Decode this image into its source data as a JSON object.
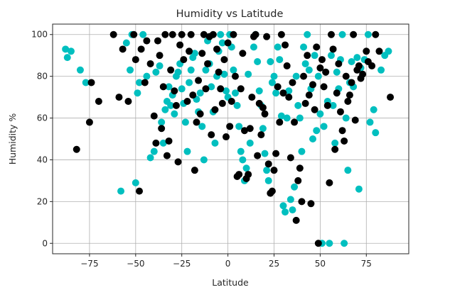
{
  "chart_data": {
    "type": "scatter",
    "title": "Humidity vs Latitude",
    "xlabel": "Latitude",
    "ylabel": "Humidity %",
    "xlim": [
      -95,
      98
    ],
    "ylim": [
      -5,
      105
    ],
    "xticks": [
      -75,
      -50,
      -25,
      0,
      25,
      50,
      75
    ],
    "xtick_labels": [
      "−75",
      "−50",
      "−25",
      "0",
      "25",
      "50",
      "75"
    ],
    "yticks": [
      0,
      20,
      40,
      60,
      80,
      100
    ],
    "ytick_labels": [
      "0",
      "20",
      "40",
      "60",
      "80",
      "100"
    ],
    "grid": true,
    "legend": "none",
    "colors": {
      "cyan": "#00bfbf",
      "black": "#000000"
    },
    "series": [
      {
        "color": "#00bfbf",
        "points": [
          [
            -88,
            93
          ],
          [
            -87,
            89
          ],
          [
            -85,
            92
          ],
          [
            -80,
            83
          ],
          [
            -77,
            77
          ],
          [
            -58,
            25
          ],
          [
            -55,
            96
          ],
          [
            -53,
            83
          ],
          [
            -52,
            100
          ],
          [
            -50,
            29
          ],
          [
            -49,
            72
          ],
          [
            -48,
            77
          ],
          [
            -46,
            100
          ],
          [
            -44,
            80
          ],
          [
            -42,
            41
          ],
          [
            -40,
            44
          ],
          [
            -39,
            82
          ],
          [
            -37,
            85
          ],
          [
            -36,
            58
          ],
          [
            -35,
            48
          ],
          [
            -34,
            64
          ],
          [
            -33,
            68
          ],
          [
            -32,
            75
          ],
          [
            -31,
            66
          ],
          [
            -30,
            71
          ],
          [
            -29,
            62
          ],
          [
            -28,
            80
          ],
          [
            -27,
            82
          ],
          [
            -26,
            86
          ],
          [
            -25,
            74
          ],
          [
            -24,
            67
          ],
          [
            -23,
            58
          ],
          [
            -22,
            44
          ],
          [
            -21,
            77
          ],
          [
            -20,
            83
          ],
          [
            -19,
            89
          ],
          [
            -18,
            91
          ],
          [
            -17,
            69
          ],
          [
            -16,
            63
          ],
          [
            -15,
            72
          ],
          [
            -14,
            56
          ],
          [
            -13,
            40
          ],
          [
            -12,
            83
          ],
          [
            -11,
            97
          ],
          [
            -10,
            86
          ],
          [
            -9,
            75
          ],
          [
            -8,
            63
          ],
          [
            -7,
            48
          ],
          [
            -6,
            80
          ],
          [
            -5,
            92
          ],
          [
            -4,
            100
          ],
          [
            -3,
            96
          ],
          [
            -2,
            81
          ],
          [
            -1,
            73
          ],
          [
            0,
            70
          ],
          [
            1,
            100
          ],
          [
            2,
            94
          ],
          [
            3,
            83
          ],
          [
            4,
            72
          ],
          [
            5,
            66
          ],
          [
            6,
            56
          ],
          [
            7,
            44
          ],
          [
            8,
            40
          ],
          [
            9,
            30
          ],
          [
            10,
            36
          ],
          [
            11,
            81
          ],
          [
            12,
            48
          ],
          [
            14,
            94
          ],
          [
            15,
            100
          ],
          [
            16,
            87
          ],
          [
            17,
            73
          ],
          [
            18,
            66
          ],
          [
            19,
            55
          ],
          [
            20,
            43
          ],
          [
            21,
            35
          ],
          [
            22,
            30
          ],
          [
            23,
            87
          ],
          [
            24,
            77
          ],
          [
            25,
            80
          ],
          [
            26,
            72
          ],
          [
            27,
            94
          ],
          [
            28,
            88
          ],
          [
            29,
            61
          ],
          [
            30,
            18
          ],
          [
            31,
            15
          ],
          [
            32,
            60
          ],
          [
            33,
            73
          ],
          [
            34,
            21
          ],
          [
            35,
            16
          ],
          [
            36,
            27
          ],
          [
            37,
            80
          ],
          [
            38,
            66
          ],
          [
            39,
            60
          ],
          [
            40,
            44
          ],
          [
            41,
            94
          ],
          [
            42,
            86
          ],
          [
            43,
            100
          ],
          [
            44,
            83
          ],
          [
            45,
            74
          ],
          [
            46,
            50
          ],
          [
            47,
            90
          ],
          [
            48,
            54
          ],
          [
            49,
            80
          ],
          [
            50,
            62
          ],
          [
            51,
            0
          ],
          [
            52,
            56
          ],
          [
            53,
            82
          ],
          [
            54,
            68
          ],
          [
            55,
            0
          ],
          [
            56,
            90
          ],
          [
            57,
            66
          ],
          [
            58,
            48
          ],
          [
            59,
            82
          ],
          [
            60,
            74
          ],
          [
            61,
            88
          ],
          [
            62,
            100
          ],
          [
            63,
            0
          ],
          [
            64,
            60
          ],
          [
            65,
            35
          ],
          [
            66,
            77
          ],
          [
            67,
            87
          ],
          [
            68,
            75
          ],
          [
            70,
            89
          ],
          [
            71,
            26
          ],
          [
            72,
            84
          ],
          [
            74,
            88
          ],
          [
            76,
            100
          ],
          [
            77,
            58
          ],
          [
            79,
            64
          ],
          [
            80,
            53
          ],
          [
            83,
            83
          ],
          [
            85,
            90
          ],
          [
            87,
            92
          ]
        ]
      },
      {
        "color": "#000000",
        "points": [
          [
            -82,
            45
          ],
          [
            -75,
            58
          ],
          [
            -74,
            77
          ],
          [
            -70,
            68
          ],
          [
            -62,
            100
          ],
          [
            -59,
            70
          ],
          [
            -57,
            93
          ],
          [
            -54,
            68
          ],
          [
            -51,
            100
          ],
          [
            -50,
            88
          ],
          [
            -48,
            25
          ],
          [
            -47,
            93
          ],
          [
            -45,
            77
          ],
          [
            -44,
            97
          ],
          [
            -42,
            86
          ],
          [
            -40,
            61
          ],
          [
            -39,
            48
          ],
          [
            -38,
            97
          ],
          [
            -37,
            90
          ],
          [
            -36,
            55
          ],
          [
            -35,
            75
          ],
          [
            -34,
            100
          ],
          [
            -33,
            42
          ],
          [
            -32,
            49
          ],
          [
            -31,
            83
          ],
          [
            -30,
            100
          ],
          [
            -29,
            73
          ],
          [
            -28,
            66
          ],
          [
            -27,
            39
          ],
          [
            -26,
            95
          ],
          [
            -25,
            100
          ],
          [
            -24,
            88
          ],
          [
            -22,
            68
          ],
          [
            -21,
            92
          ],
          [
            -20,
            100
          ],
          [
            -19,
            71
          ],
          [
            -18,
            35
          ],
          [
            -17,
            58
          ],
          [
            -16,
            78
          ],
          [
            -15,
            62
          ],
          [
            -14,
            91
          ],
          [
            -13,
            100
          ],
          [
            -12,
            74
          ],
          [
            -11,
            86
          ],
          [
            -10,
            99
          ],
          [
            -9,
            52
          ],
          [
            -8,
            100
          ],
          [
            -7,
            64
          ],
          [
            -6,
            93
          ],
          [
            -5,
            82
          ],
          [
            -4,
            74
          ],
          [
            -3,
            67
          ],
          [
            -2,
            88
          ],
          [
            -1,
            51
          ],
          [
            0,
            96
          ],
          [
            1,
            56
          ],
          [
            2,
            68
          ],
          [
            3,
            100
          ],
          [
            4,
            80
          ],
          [
            5,
            32
          ],
          [
            6,
            33
          ],
          [
            7,
            74
          ],
          [
            8,
            91
          ],
          [
            9,
            54
          ],
          [
            10,
            31
          ],
          [
            11,
            33
          ],
          [
            12,
            55
          ],
          [
            13,
            70
          ],
          [
            14,
            99
          ],
          [
            15,
            100
          ],
          [
            16,
            42
          ],
          [
            17,
            67
          ],
          [
            18,
            52
          ],
          [
            19,
            65
          ],
          [
            20,
            62
          ],
          [
            21,
            99
          ],
          [
            22,
            38
          ],
          [
            23,
            24
          ],
          [
            24,
            25
          ],
          [
            25,
            35
          ],
          [
            26,
            43
          ],
          [
            27,
            75
          ],
          [
            28,
            58
          ],
          [
            29,
            100
          ],
          [
            30,
            72
          ],
          [
            31,
            95
          ],
          [
            32,
            85
          ],
          [
            33,
            70
          ],
          [
            34,
            41
          ],
          [
            35,
            77
          ],
          [
            36,
            58
          ],
          [
            37,
            11
          ],
          [
            38,
            30
          ],
          [
            39,
            36
          ],
          [
            40,
            20
          ],
          [
            41,
            80
          ],
          [
            42,
            67
          ],
          [
            43,
            90
          ],
          [
            44,
            71
          ],
          [
            45,
            19
          ],
          [
            46,
            76
          ],
          [
            47,
            64
          ],
          [
            48,
            94
          ],
          [
            49,
            0
          ],
          [
            50,
            84
          ],
          [
            51,
            88
          ],
          [
            52,
            75
          ],
          [
            53,
            82
          ],
          [
            54,
            66
          ],
          [
            55,
            29
          ],
          [
            56,
            100
          ],
          [
            57,
            93
          ],
          [
            58,
            45
          ],
          [
            59,
            72
          ],
          [
            60,
            86
          ],
          [
            61,
            63
          ],
          [
            62,
            54
          ],
          [
            63,
            49
          ],
          [
            64,
            80
          ],
          [
            65,
            68
          ],
          [
            66,
            71
          ],
          [
            67,
            77
          ],
          [
            68,
            100
          ],
          [
            69,
            59
          ],
          [
            70,
            83
          ],
          [
            71,
            85
          ],
          [
            72,
            79
          ],
          [
            73,
            81
          ],
          [
            75,
            92
          ],
          [
            76,
            87
          ],
          [
            78,
            85
          ],
          [
            80,
            100
          ],
          [
            82,
            92
          ],
          [
            88,
            70
          ]
        ]
      }
    ]
  }
}
